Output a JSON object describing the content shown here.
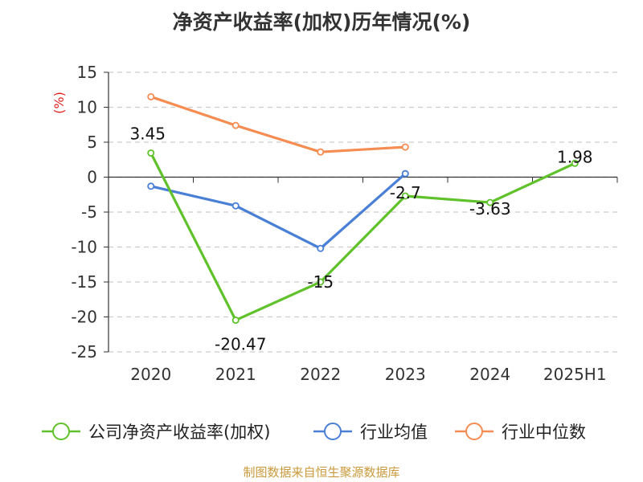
{
  "chart_data": {
    "type": "line",
    "title": "净资产收益率(加权)历年情况(%)",
    "ylabel": "(%)",
    "xlabel": "",
    "categories": [
      "2020",
      "2021",
      "2022",
      "2023",
      "2024",
      "2025H1"
    ],
    "ylim": [
      -25,
      15
    ],
    "yticks": [
      15,
      10,
      5,
      0,
      -5,
      -10,
      -15,
      -20,
      -25
    ],
    "grid": true,
    "legend_position": "bottom",
    "series": [
      {
        "name": "公司净资产收益率(加权)",
        "color": "#5fc22b",
        "values": [
          3.45,
          -20.47,
          -15,
          -2.7,
          -3.63,
          1.98
        ],
        "labels": [
          "3.45",
          "-20.47",
          "-15",
          "-2.7",
          "-3.63",
          "1.98"
        ]
      },
      {
        "name": "行业均值",
        "color": "#4a7fd6",
        "values": [
          -1.3,
          -4.1,
          -10.2,
          0.5,
          null,
          null
        ]
      },
      {
        "name": "行业中位数",
        "color": "#f58c52",
        "values": [
          11.5,
          7.4,
          3.6,
          4.3,
          null,
          null
        ]
      }
    ]
  },
  "footer": {
    "source": "制图数据来自恒生聚源数据库"
  }
}
